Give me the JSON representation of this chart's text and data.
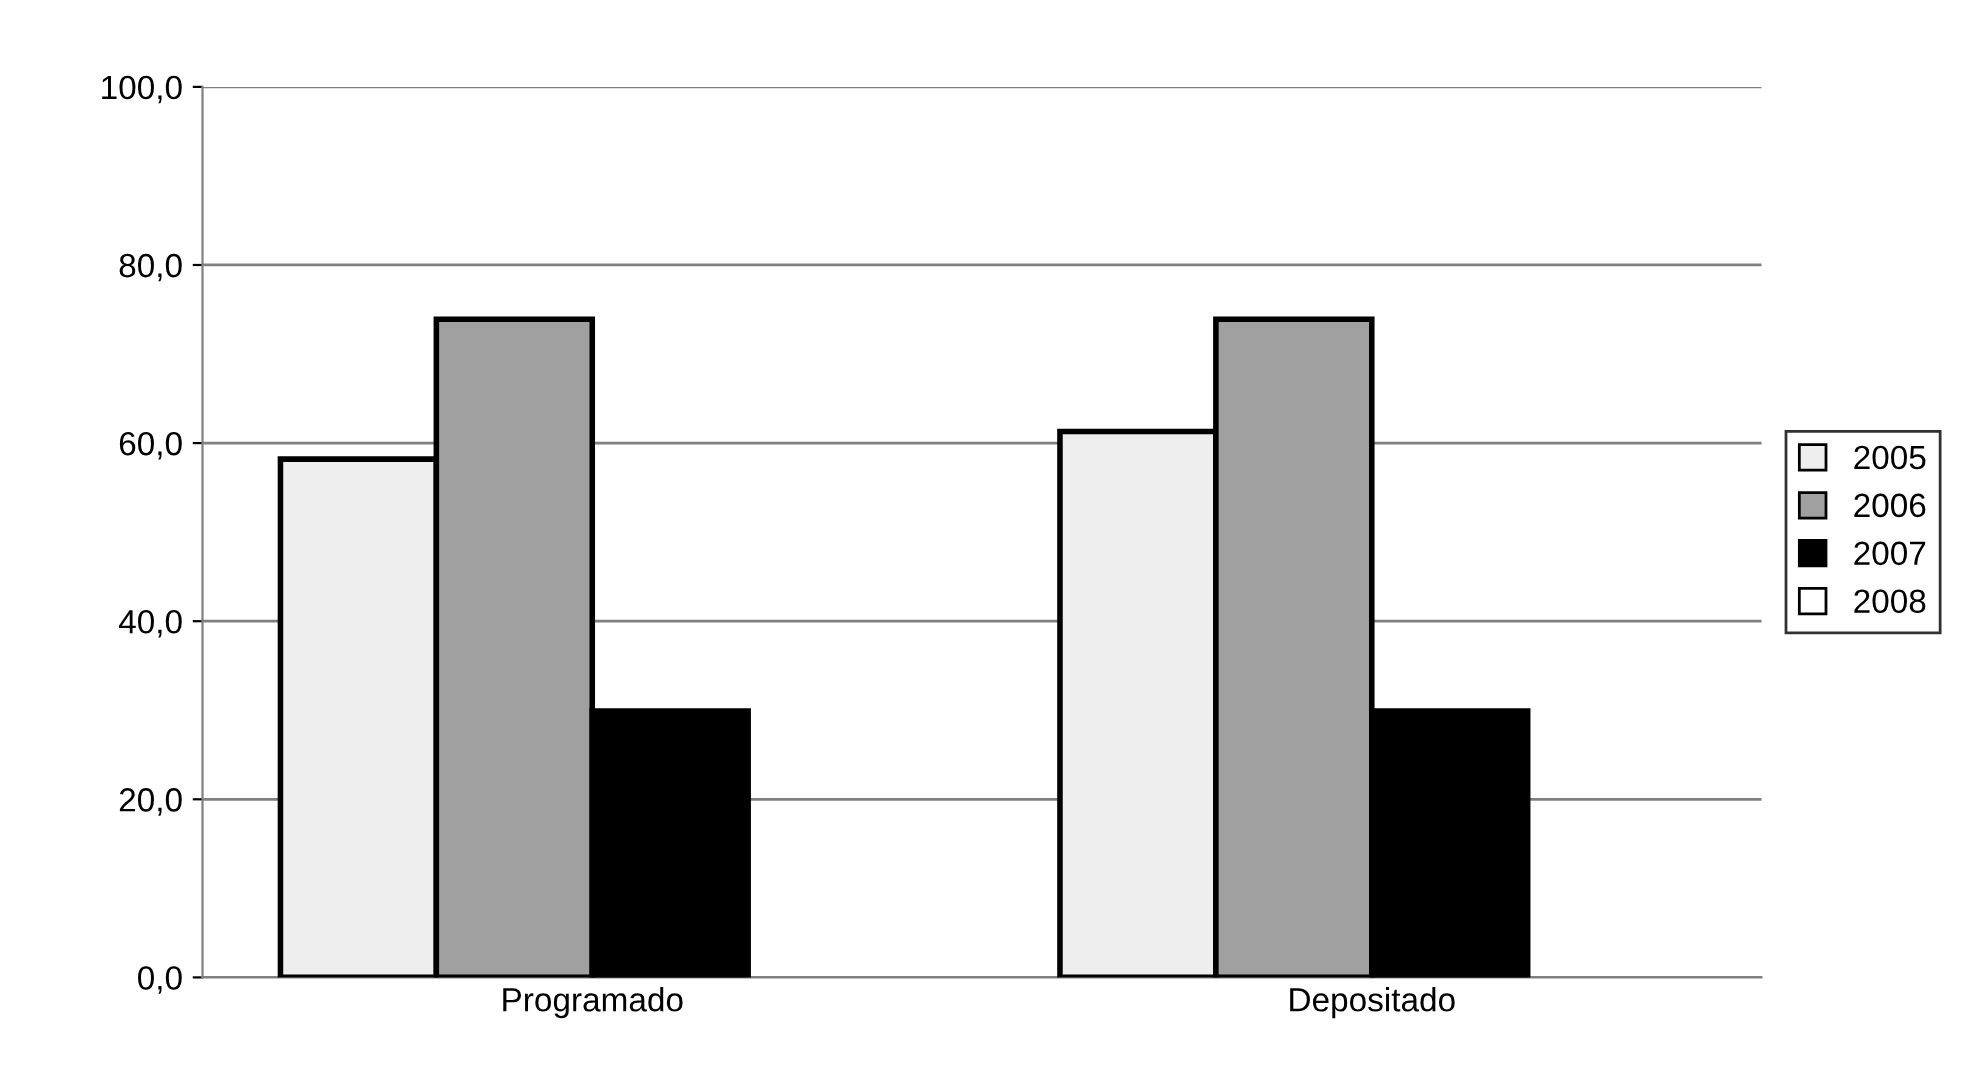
{
  "chart_data": {
    "type": "bar",
    "categories": [
      "Programado",
      "Depositado"
    ],
    "series": [
      {
        "name": "2005",
        "color": "#eeeeee",
        "values": [
          58.2,
          61.3
        ]
      },
      {
        "name": "2006",
        "color": "#a0a0a0",
        "values": [
          73.9,
          73.9
        ]
      },
      {
        "name": "2007",
        "color": "#000000",
        "values": [
          29.9,
          29.9
        ]
      },
      {
        "name": "2008",
        "color": "#ffffff",
        "values": [
          null,
          null
        ]
      }
    ],
    "ylim": [
      0,
      100
    ],
    "yticks": [
      {
        "value": 0,
        "label": "0,0"
      },
      {
        "value": 20,
        "label": "20,0"
      },
      {
        "value": 40,
        "label": "40,0"
      },
      {
        "value": 60,
        "label": "60,0"
      },
      {
        "value": 80,
        "label": "80,0"
      },
      {
        "value": 100,
        "label": "100,0"
      }
    ],
    "grid": "y",
    "legend": "right"
  }
}
